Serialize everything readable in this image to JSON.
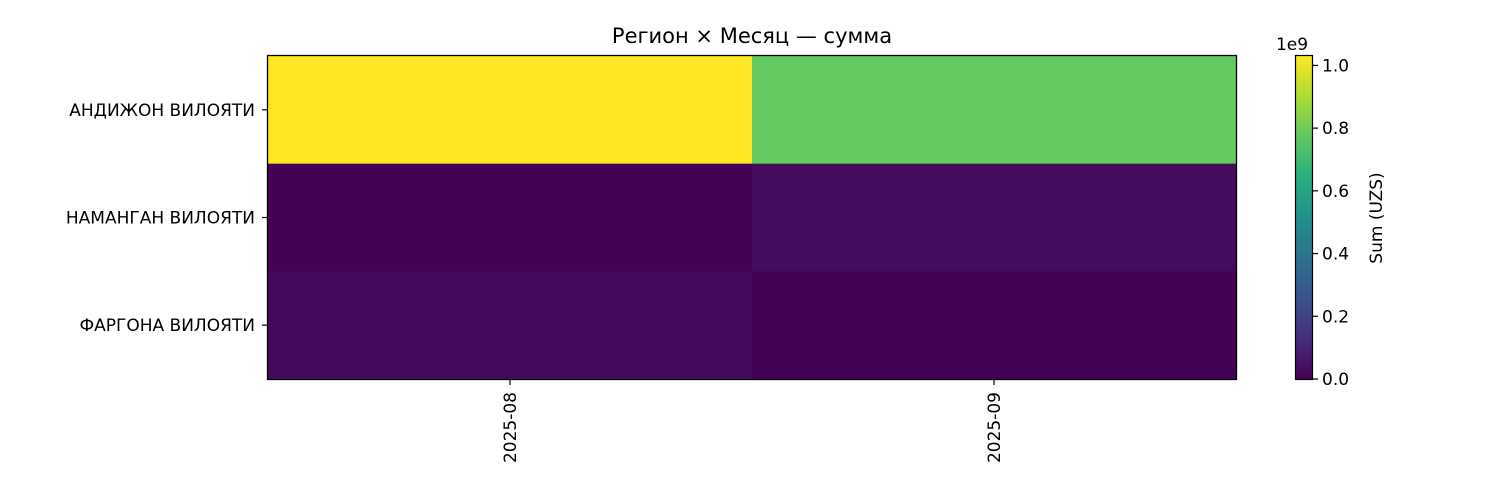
{
  "chart_data": {
    "type": "heatmap",
    "title": "Регион × Месяц — сумма",
    "xlabel": "",
    "ylabel": "",
    "x_categories": [
      "2025-08",
      "2025-09"
    ],
    "y_categories": [
      "АНДИЖОН ВИЛОЯТИ",
      "НАМАНГАН ВИЛОЯТИ",
      "ФАРГОНА ВИЛОЯТИ"
    ],
    "values": [
      [
        1030000000,
        780000000
      ],
      [
        2000000,
        30000000
      ],
      [
        26000000,
        3000000
      ]
    ],
    "colorbar": {
      "label": "Sum (UZS)",
      "range": [
        0,
        1030000000
      ],
      "ticks": [
        0,
        0.2,
        0.4,
        0.6,
        0.8,
        1.0
      ],
      "tick_labels": [
        "0.0",
        "0.2",
        "0.4",
        "0.6",
        "0.8",
        "1.0"
      ],
      "offset_label": "1e9",
      "colormap": "viridis"
    }
  }
}
